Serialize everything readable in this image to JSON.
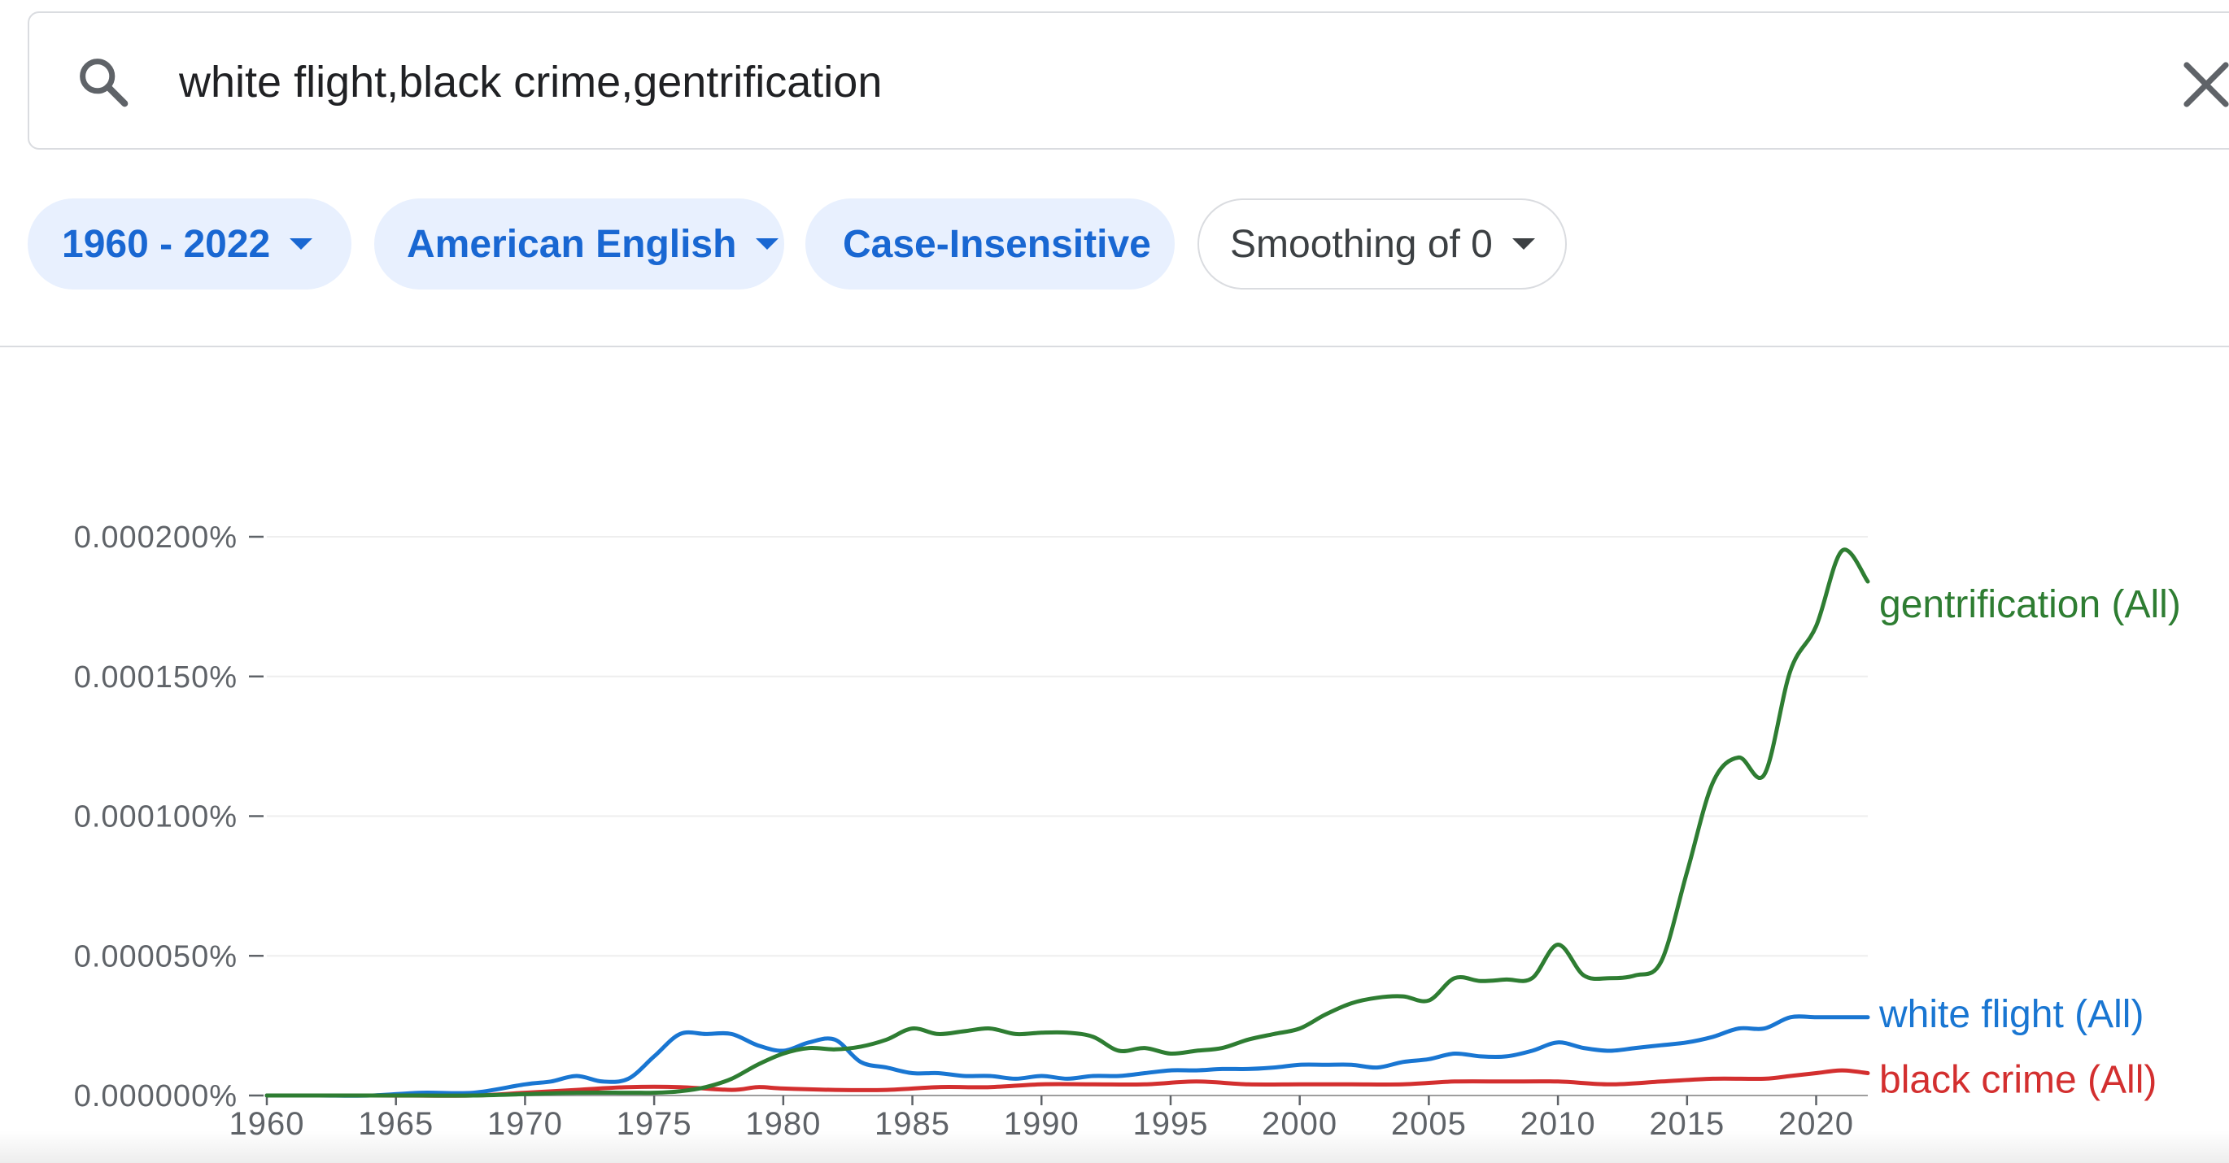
{
  "search": {
    "query": "white flight,black crime,gentrification"
  },
  "filters": {
    "year_range": "1960 - 2022",
    "corpus": "American English",
    "case": "Case-Insensitive",
    "smoothing": "Smoothing of 0"
  },
  "icons": {
    "search": "search-icon",
    "clear": "close-icon",
    "dropdown": "caret-down-icon"
  },
  "colors": {
    "accent_blue": "#1967d2",
    "chip_fill": "#e8f0fe",
    "gentrification": "#2e7d32",
    "white_flight": "#1976d2",
    "black_crime": "#d32f2f"
  },
  "chart_data": {
    "type": "line",
    "title": "",
    "xlabel": "",
    "ylabel": "",
    "xlim": [
      1960,
      2022
    ],
    "ylim": [
      0,
      0.0002
    ],
    "y_unit": "%",
    "yticks": [
      0,
      5e-05,
      0.0001,
      0.00015,
      0.0002
    ],
    "ytick_labels": [
      "0.000000%",
      "0.000050%",
      "0.000100%",
      "0.000150%",
      "0.000200%"
    ],
    "xticks": [
      1960,
      1965,
      1970,
      1975,
      1980,
      1985,
      1990,
      1995,
      2000,
      2005,
      2010,
      2015,
      2020
    ],
    "xtick_labels": [
      "1960",
      "1965",
      "1970",
      "1975",
      "1980",
      "1985",
      "1990",
      "1995",
      "2000",
      "2005",
      "2010",
      "2015",
      "2020"
    ],
    "grid": true,
    "legend": "inline-right",
    "series": [
      {
        "name": "gentrification (All)",
        "color": "#2e7d32",
        "x": [
          1960,
          1962,
          1964,
          1966,
          1968,
          1970,
          1972,
          1974,
          1975,
          1976,
          1977,
          1978,
          1979,
          1980,
          1981,
          1982,
          1983,
          1984,
          1985,
          1986,
          1987,
          1988,
          1989,
          1990,
          1991,
          1992,
          1993,
          1994,
          1995,
          1996,
          1997,
          1998,
          1999,
          2000,
          2001,
          2002,
          2003,
          2004,
          2005,
          2006,
          2007,
          2008,
          2009,
          2010,
          2011,
          2012,
          2013,
          2014,
          2015,
          2016,
          2017,
          2018,
          2019,
          2020,
          2021,
          2022
        ],
        "y": [
          0,
          0,
          0,
          0,
          0,
          5e-07,
          1e-06,
          1e-06,
          1e-06,
          1.5e-06,
          3e-06,
          6e-06,
          1.1e-05,
          1.5e-05,
          1.7e-05,
          1.65e-05,
          1.75e-05,
          2e-05,
          2.4e-05,
          2.2e-05,
          2.3e-05,
          2.4e-05,
          2.2e-05,
          2.25e-05,
          2.25e-05,
          2.1e-05,
          1.6e-05,
          1.7e-05,
          1.5e-05,
          1.6e-05,
          1.7e-05,
          2e-05,
          2.2e-05,
          2.4e-05,
          2.9e-05,
          3.3e-05,
          3.5e-05,
          3.55e-05,
          3.4e-05,
          4.2e-05,
          4.1e-05,
          4.15e-05,
          4.2e-05,
          5.4e-05,
          4.3e-05,
          4.2e-05,
          4.3e-05,
          4.8e-05,
          8e-05,
          0.000112,
          0.000121,
          0.000115,
          0.000152,
          0.000168,
          0.000195,
          0.000184
        ]
      },
      {
        "name": "white flight (All)",
        "color": "#1976d2",
        "x": [
          1960,
          1962,
          1964,
          1966,
          1968,
          1970,
          1971,
          1972,
          1973,
          1974,
          1975,
          1976,
          1977,
          1978,
          1979,
          1980,
          1981,
          1982,
          1983,
          1984,
          1985,
          1986,
          1987,
          1988,
          1989,
          1990,
          1991,
          1992,
          1993,
          1994,
          1995,
          1996,
          1997,
          1998,
          1999,
          2000,
          2001,
          2002,
          2003,
          2004,
          2005,
          2006,
          2007,
          2008,
          2009,
          2010,
          2011,
          2012,
          2013,
          2014,
          2015,
          2016,
          2017,
          2018,
          2019,
          2020,
          2021,
          2022
        ],
        "y": [
          0,
          0,
          0,
          1e-06,
          1e-06,
          4e-06,
          5e-06,
          7e-06,
          5e-06,
          6e-06,
          1.4e-05,
          2.2e-05,
          2.2e-05,
          2.2e-05,
          1.8e-05,
          1.6e-05,
          1.9e-05,
          2e-05,
          1.2e-05,
          1e-05,
          8e-06,
          8e-06,
          7e-06,
          7e-06,
          6e-06,
          7e-06,
          6e-06,
          7e-06,
          7e-06,
          8e-06,
          9e-06,
          9e-06,
          9.5e-06,
          9.5e-06,
          1e-05,
          1.1e-05,
          1.1e-05,
          1.1e-05,
          1e-05,
          1.2e-05,
          1.3e-05,
          1.5e-05,
          1.4e-05,
          1.4e-05,
          1.6e-05,
          1.9e-05,
          1.7e-05,
          1.6e-05,
          1.7e-05,
          1.8e-05,
          1.9e-05,
          2.1e-05,
          2.4e-05,
          2.4e-05,
          2.8e-05,
          2.8e-05,
          2.8e-05,
          2.8e-05
        ]
      },
      {
        "name": "black crime (All)",
        "color": "#d32f2f",
        "x": [
          1960,
          1964,
          1968,
          1970,
          1972,
          1974,
          1976,
          1978,
          1979,
          1980,
          1982,
          1984,
          1986,
          1988,
          1990,
          1992,
          1994,
          1996,
          1998,
          2000,
          2002,
          2004,
          2006,
          2008,
          2010,
          2012,
          2014,
          2016,
          2018,
          2019,
          2020,
          2021,
          2022
        ],
        "y": [
          0,
          0,
          0,
          1e-06,
          2e-06,
          3e-06,
          3e-06,
          2e-06,
          3e-06,
          2.5e-06,
          2e-06,
          2e-06,
          3e-06,
          3e-06,
          4e-06,
          4e-06,
          4e-06,
          5e-06,
          4e-06,
          4e-06,
          4e-06,
          4e-06,
          5e-06,
          5e-06,
          5e-06,
          4e-06,
          5e-06,
          6e-06,
          6e-06,
          7e-06,
          8e-06,
          9e-06,
          8e-06
        ]
      }
    ]
  }
}
